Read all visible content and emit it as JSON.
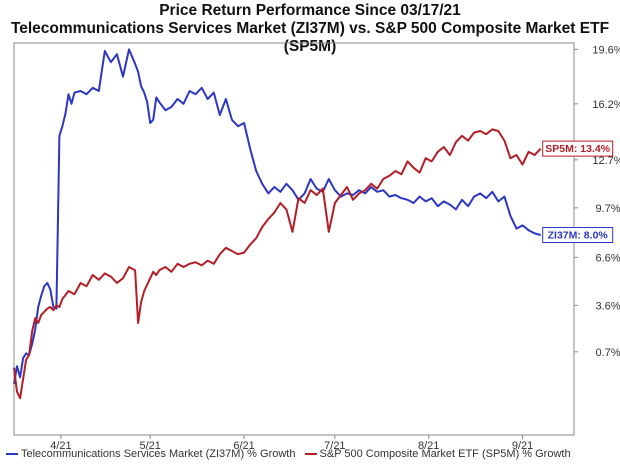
{
  "title_line1": "Price Return Performance Since 03/17/21",
  "title_line2": "Telecommunications Services Market (ZI37M)   vs.   S&P 500 Composite Market ETF (SP5M)",
  "chart_data": {
    "type": "line",
    "title": "Price Return Performance Since 03/17/21",
    "subtitle": "Telecommunications Services Market (ZI37M) vs. S&P 500 Composite Market ETF (SP5M)",
    "x_tick_labels": [
      "4/21",
      "5/21",
      "6/21",
      "7/21",
      "8/21",
      "9/21"
    ],
    "x_tick_pos": [
      15.5,
      45,
      76,
      106,
      137,
      168
    ],
    "xlim": [
      0,
      185
    ],
    "y_ticks": [
      "0.7%",
      "3.6%",
      "6.6%",
      "9.7%",
      "12.7%",
      "16.2%",
      "19.6%"
    ],
    "y_tick_values": [
      0.7,
      3.6,
      6.6,
      9.7,
      12.7,
      16.2,
      19.6
    ],
    "ylim": [
      -4.5,
      20.0
    ],
    "series": [
      {
        "name": "Telecommunications Services Market (ZI37M) % Growth",
        "short": "ZI37M",
        "end_label": "ZI37M: 8.0%",
        "color": "#2b37c4",
        "x": [
          0,
          1,
          2,
          3,
          4,
          5,
          6,
          7,
          8,
          9,
          10,
          11,
          12,
          13,
          14,
          15,
          16,
          17,
          18,
          19,
          20,
          22,
          24,
          26,
          28,
          30,
          32,
          34,
          36,
          38,
          40,
          41,
          42,
          43,
          44,
          45,
          46,
          47,
          48,
          50,
          52,
          54,
          56,
          58,
          60,
          62,
          64,
          66,
          68,
          70,
          72,
          74,
          76,
          78,
          80,
          82,
          84,
          86,
          88,
          90,
          92,
          94,
          96,
          98,
          100,
          102,
          104,
          106,
          108,
          110,
          112,
          114,
          116,
          118,
          120,
          122,
          124,
          126,
          128,
          130,
          132,
          134,
          136,
          138,
          140,
          142,
          144,
          146,
          148,
          150,
          152,
          154,
          156,
          158,
          160,
          162,
          164,
          166,
          168,
          170,
          172,
          174
        ],
        "y": [
          -1.3,
          -0.2,
          -0.9,
          0.3,
          0.6,
          0.5,
          1.2,
          2.1,
          3.5,
          4.2,
          4.8,
          5.0,
          4.6,
          3.5,
          3.4,
          14.2,
          14.8,
          15.6,
          16.8,
          16.2,
          16.9,
          17.0,
          16.8,
          17.2,
          17.0,
          19.5,
          18.8,
          19.3,
          17.9,
          19.6,
          18.7,
          18.2,
          17.3,
          16.9,
          16.3,
          15.0,
          15.2,
          16.6,
          16.3,
          15.8,
          16.0,
          16.5,
          16.2,
          17.0,
          16.8,
          17.2,
          16.5,
          16.9,
          15.5,
          16.5,
          15.2,
          14.8,
          15.0,
          13.4,
          12.0,
          11.2,
          10.6,
          11.0,
          10.7,
          11.2,
          10.8,
          10.2,
          10.6,
          11.5,
          10.9,
          10.7,
          11.5,
          10.8,
          10.4,
          10.6,
          10.5,
          10.8,
          10.6,
          11.0,
          10.7,
          10.8,
          10.4,
          10.5,
          10.3,
          10.2,
          10.0,
          10.4,
          10.1,
          10.3,
          9.8,
          10.1,
          9.9,
          9.6,
          10.2,
          9.8,
          10.4,
          10.6,
          10.3,
          10.7,
          10.1,
          10.4,
          9.2,
          8.4,
          8.6,
          8.3,
          8.1,
          8.0
        ],
        "last_value": 8.0
      },
      {
        "name": "S&P 500 Composite Market ETF (SP5M) % Growth",
        "short": "SP5M",
        "end_label": "SP5M: 13.4%",
        "color": "#b31e27",
        "x": [
          0,
          1,
          2,
          3,
          4,
          5,
          6,
          7,
          8,
          9,
          10,
          11,
          12,
          13,
          14,
          15,
          16,
          18,
          20,
          22,
          24,
          26,
          28,
          30,
          32,
          34,
          36,
          38,
          40,
          41,
          42,
          43,
          44,
          45,
          46,
          47,
          48,
          50,
          52,
          54,
          56,
          58,
          60,
          62,
          64,
          66,
          68,
          70,
          72,
          74,
          76,
          78,
          80,
          82,
          84,
          86,
          88,
          90,
          92,
          94,
          96,
          98,
          100,
          102,
          104,
          106,
          108,
          110,
          112,
          114,
          116,
          118,
          120,
          122,
          124,
          126,
          128,
          130,
          132,
          134,
          136,
          138,
          140,
          142,
          144,
          146,
          148,
          150,
          152,
          154,
          156,
          158,
          160,
          162,
          164,
          166,
          168,
          170,
          172,
          174
        ],
        "y": [
          -0.3,
          -1.8,
          -2.2,
          -1.0,
          0.2,
          0.5,
          2.0,
          2.8,
          2.5,
          3.0,
          3.2,
          3.4,
          3.5,
          3.3,
          3.6,
          3.5,
          4.0,
          4.5,
          4.3,
          5.0,
          4.8,
          5.5,
          5.2,
          5.6,
          5.4,
          5.0,
          5.3,
          6.0,
          5.8,
          2.5,
          3.8,
          4.5,
          4.9,
          5.3,
          5.7,
          5.5,
          5.8,
          6.0,
          5.7,
          6.2,
          6.0,
          6.2,
          6.3,
          6.1,
          6.4,
          6.2,
          6.8,
          7.2,
          7.0,
          6.8,
          6.9,
          7.4,
          7.8,
          8.5,
          9.0,
          9.4,
          10.0,
          9.6,
          8.2,
          10.3,
          10.0,
          10.8,
          10.5,
          10.9,
          8.2,
          10.0,
          10.5,
          11.0,
          10.2,
          10.6,
          10.8,
          11.2,
          10.9,
          11.5,
          11.7,
          12.0,
          11.8,
          12.6,
          12.2,
          11.9,
          12.8,
          12.6,
          13.2,
          13.5,
          13.0,
          13.8,
          14.2,
          13.9,
          14.4,
          14.5,
          14.3,
          14.6,
          14.5,
          13.9,
          12.8,
          13.0,
          12.4,
          13.2,
          13.0,
          13.4
        ],
        "last_value": 13.4
      }
    ],
    "legend_position": "bottom",
    "grid": false
  }
}
